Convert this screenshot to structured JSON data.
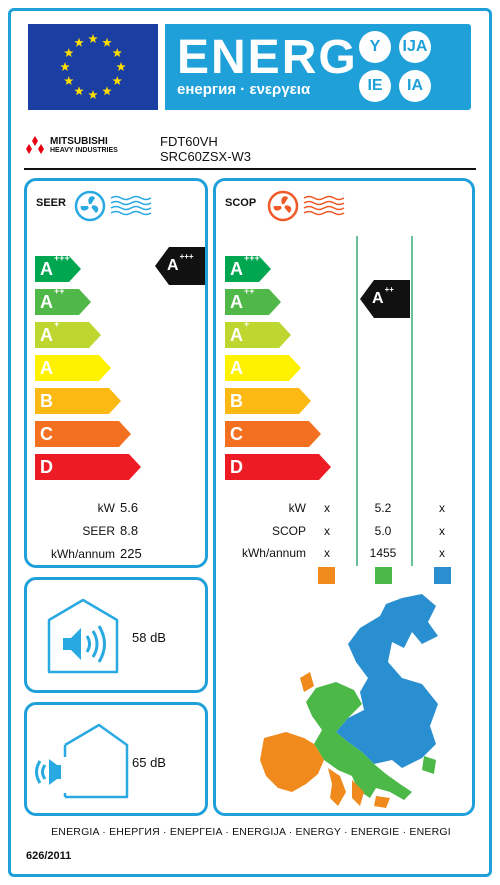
{
  "header": {
    "title": "ENERG",
    "subtitle": "енергия · ενεργεια",
    "bubbles": [
      "Y",
      "IJA",
      "IE",
      "IA"
    ]
  },
  "supplier": {
    "brand_line1": "MITSUBISHI",
    "brand_line2": "HEAVY INDUSTRIES",
    "model_indoor": "FDT60VH",
    "model_outdoor": "SRC60ZSX-W3"
  },
  "cooling": {
    "title": "SEER",
    "rating": {
      "base": "A",
      "sup": "+++"
    },
    "rows": [
      {
        "label": "kW",
        "value": "5.6"
      },
      {
        "label": "SEER",
        "value": "8.8"
      },
      {
        "label": "kWh/annum",
        "value": "225"
      }
    ]
  },
  "heating": {
    "title": "SCOP",
    "rating": {
      "base": "A",
      "sup": "++"
    },
    "rows": [
      {
        "label": "kW",
        "values": [
          "x",
          "5.2",
          "x"
        ]
      },
      {
        "label": "SCOP",
        "values": [
          "x",
          "5.0",
          "x"
        ]
      },
      {
        "label": "kWh/annum",
        "values": [
          "x",
          "1455",
          "x"
        ]
      }
    ],
    "zone_colors": [
      "#f08a1c",
      "#4cb848",
      "#2a8fd0"
    ]
  },
  "scale": [
    {
      "base": "A",
      "sup": "+++",
      "color": "#00a650"
    },
    {
      "base": "A",
      "sup": "++",
      "color": "#50b848"
    },
    {
      "base": "A",
      "sup": "+",
      "color": "#bed630"
    },
    {
      "base": "A",
      "sup": "",
      "color": "#fff200"
    },
    {
      "base": "B",
      "sup": "",
      "color": "#fdb913"
    },
    {
      "base": "C",
      "sup": "",
      "color": "#f37021"
    },
    {
      "base": "D",
      "sup": "",
      "color": "#ed1c24"
    }
  ],
  "noise": {
    "indoor": "58 dB",
    "outdoor": "65 dB"
  },
  "footer": {
    "languages": "ENERGIA · ЕНЕРГИЯ · ΕΝΕΡΓΕΙΑ · ENERGIJA · ENERGY · ENERGIE · ENERGI",
    "regulation": "626/2011"
  },
  "colors": {
    "frame_blue": "#1fa0d8",
    "eu_blue": "#1b3ea3",
    "star_yellow": "#ffdd00",
    "cool_icon": "#29a9e1",
    "heat_icon": "#f05a28"
  }
}
